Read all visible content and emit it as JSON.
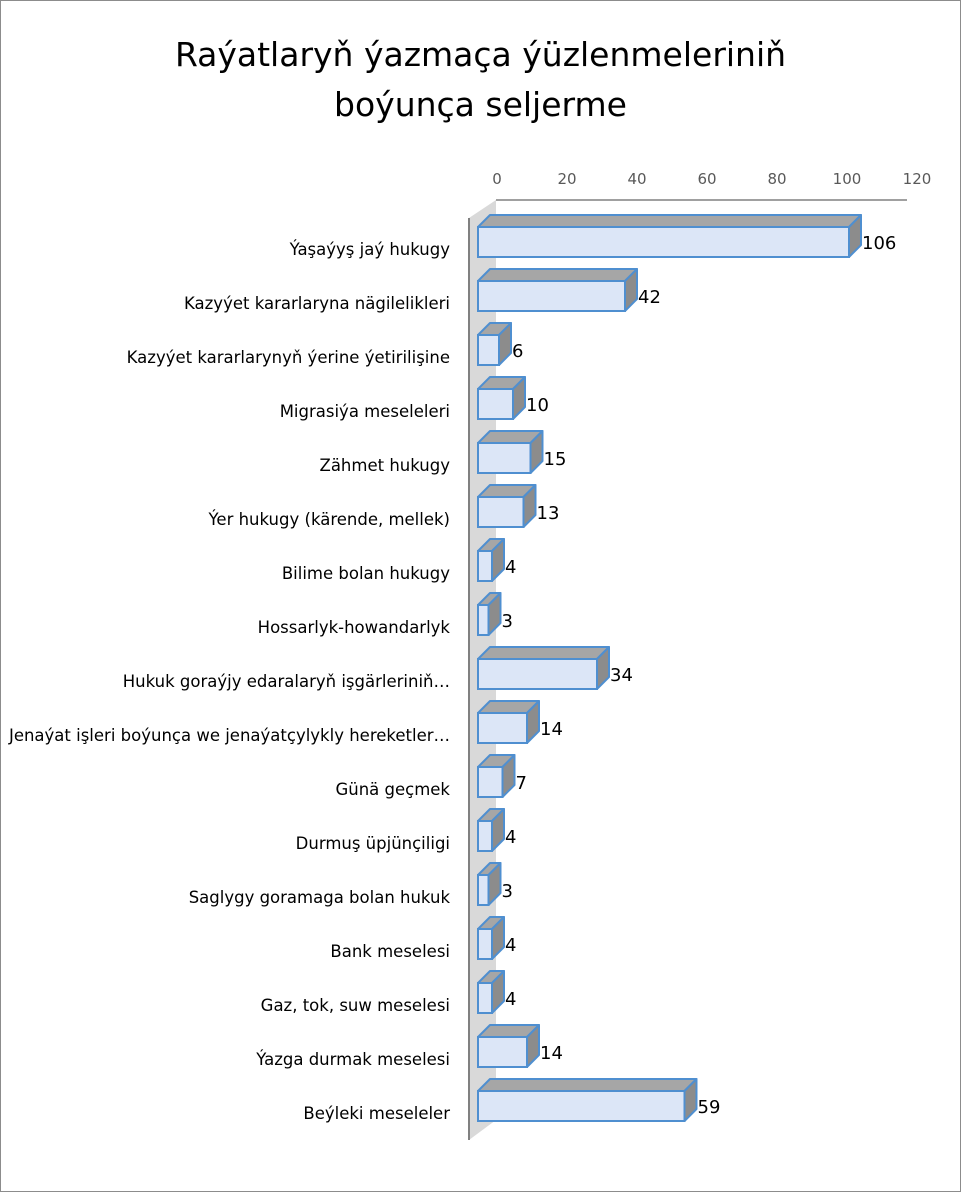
{
  "chart_data": {
    "type": "bar",
    "orientation": "horizontal",
    "style": "3d",
    "title_lines": [
      "Raýatlaryň ýazmaça ýüzlenmeleriniň",
      "boýunça seljerme"
    ],
    "categories": [
      "Ýaşaýyş jaý hukugy",
      "Kazyýet kararlaryna nägilelikleri",
      "Kazyýet kararlarynyň ýerine ýetirilişine",
      "Migrasiýa meseleleri",
      "Zähmet hukugy",
      "Ýer hukugy (kärende, mellek)",
      "Bilime bolan hukugy",
      "Hossarlyk-howandarlyk",
      "Hukuk goraýjy edaralaryň işgärleriniň…",
      "Jenaýat işleri boýunça we jenaýatçylykly hereketler…",
      "Günä geçmek",
      "Durmuş üpjünçiligi",
      "Saglygy goramaga bolan hukuk",
      "Bank meselesi",
      "Gaz, tok, suw meselesi",
      "Ýazga durmak meselesi",
      "Beýleki meseleler"
    ],
    "values": [
      106,
      42,
      6,
      10,
      15,
      13,
      4,
      3,
      34,
      14,
      7,
      4,
      3,
      4,
      4,
      14,
      59
    ],
    "x_ticks": [
      "0",
      "20",
      "40",
      "60",
      "80",
      "100",
      "120"
    ],
    "xlim": [
      0,
      120
    ],
    "axis_position": "top",
    "data_labels": true,
    "grid": false,
    "legend": "none",
    "colors": {
      "bar_face": "#dce6f7",
      "bar_edge": "#4f8fd0",
      "bar_top": "#a6a6a6",
      "bar_side": "#8c8c8c",
      "wall": "#d9d9d9",
      "axis": "#808080"
    }
  }
}
